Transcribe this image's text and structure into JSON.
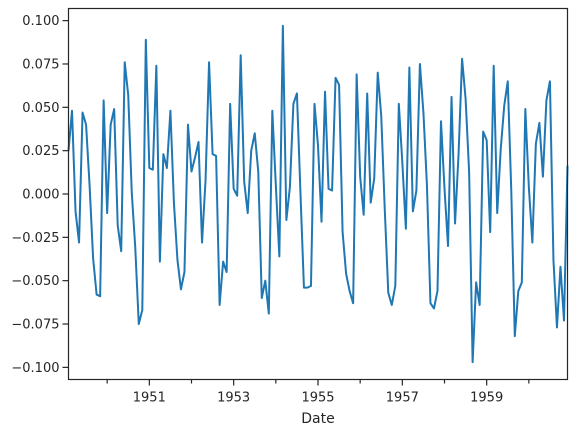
{
  "chart_data": {
    "type": "line",
    "xlabel": "Date",
    "ylabel": "",
    "x_start": "1949-02",
    "x_end": "1960-12",
    "x_unit": "month",
    "xlim": [
      "1949-02",
      "1960-12"
    ],
    "ylim": [
      -0.107,
      0.107
    ],
    "x_major_ticks": [
      "1951",
      "1953",
      "1955",
      "1957",
      "1959"
    ],
    "x_minor_ticks": [
      "1950",
      "1952",
      "1954",
      "1956",
      "1958",
      "1960"
    ],
    "y_ticks": [
      -0.1,
      -0.075,
      -0.05,
      -0.025,
      0.0,
      0.025,
      0.05,
      0.075,
      0.1
    ],
    "y_tick_labels": [
      "−0.100",
      "−0.075",
      "−0.050",
      "−0.025",
      "0.000",
      "0.025",
      "0.050",
      "0.075",
      "0.100"
    ],
    "grid": false,
    "line_color": "#1f77b4",
    "series": [
      {
        "values": [
          0.025,
          0.048,
          -0.01,
          -0.028,
          0.047,
          0.04,
          0.005,
          -0.037,
          -0.058,
          -0.059,
          0.054,
          -0.011,
          0.04,
          0.049,
          -0.018,
          -0.033,
          0.076,
          0.057,
          0.001,
          -0.031,
          -0.075,
          -0.067,
          0.089,
          0.015,
          0.014,
          0.074,
          -0.039,
          0.023,
          0.015,
          0.048,
          -0.005,
          -0.038,
          -0.055,
          -0.045,
          0.04,
          0.013,
          0.021,
          0.03,
          -0.028,
          0.008,
          0.076,
          0.023,
          0.022,
          -0.064,
          -0.039,
          -0.045,
          0.052,
          0.003,
          -0.001,
          0.08,
          0.007,
          -0.011,
          0.025,
          0.035,
          0.013,
          -0.06,
          -0.05,
          -0.069,
          0.048,
          0.005,
          -0.036,
          0.097,
          -0.015,
          0.004,
          0.052,
          0.058,
          0.001,
          -0.054,
          -0.054,
          -0.053,
          0.052,
          0.028,
          -0.016,
          0.059,
          0.003,
          0.002,
          0.067,
          0.063,
          -0.022,
          -0.046,
          -0.056,
          -0.063,
          0.069,
          0.01,
          -0.012,
          0.058,
          -0.005,
          0.009,
          0.07,
          0.045,
          -0.009,
          -0.057,
          -0.064,
          -0.053,
          0.052,
          0.018,
          -0.02,
          0.073,
          -0.01,
          0.002,
          0.075,
          0.047,
          0.005,
          -0.063,
          -0.066,
          -0.056,
          0.042,
          0.003,
          -0.03,
          0.056,
          -0.017,
          0.023,
          0.078,
          0.055,
          0.013,
          -0.097,
          -0.051,
          -0.064,
          0.036,
          0.031,
          -0.022,
          0.074,
          -0.011,
          0.026,
          0.051,
          0.065,
          0.002,
          -0.082,
          -0.056,
          -0.051,
          0.049,
          0.004,
          -0.028,
          0.029,
          0.041,
          0.01,
          0.054,
          0.065,
          -0.038,
          -0.077,
          -0.042,
          -0.073,
          0.016
        ]
      }
    ]
  }
}
